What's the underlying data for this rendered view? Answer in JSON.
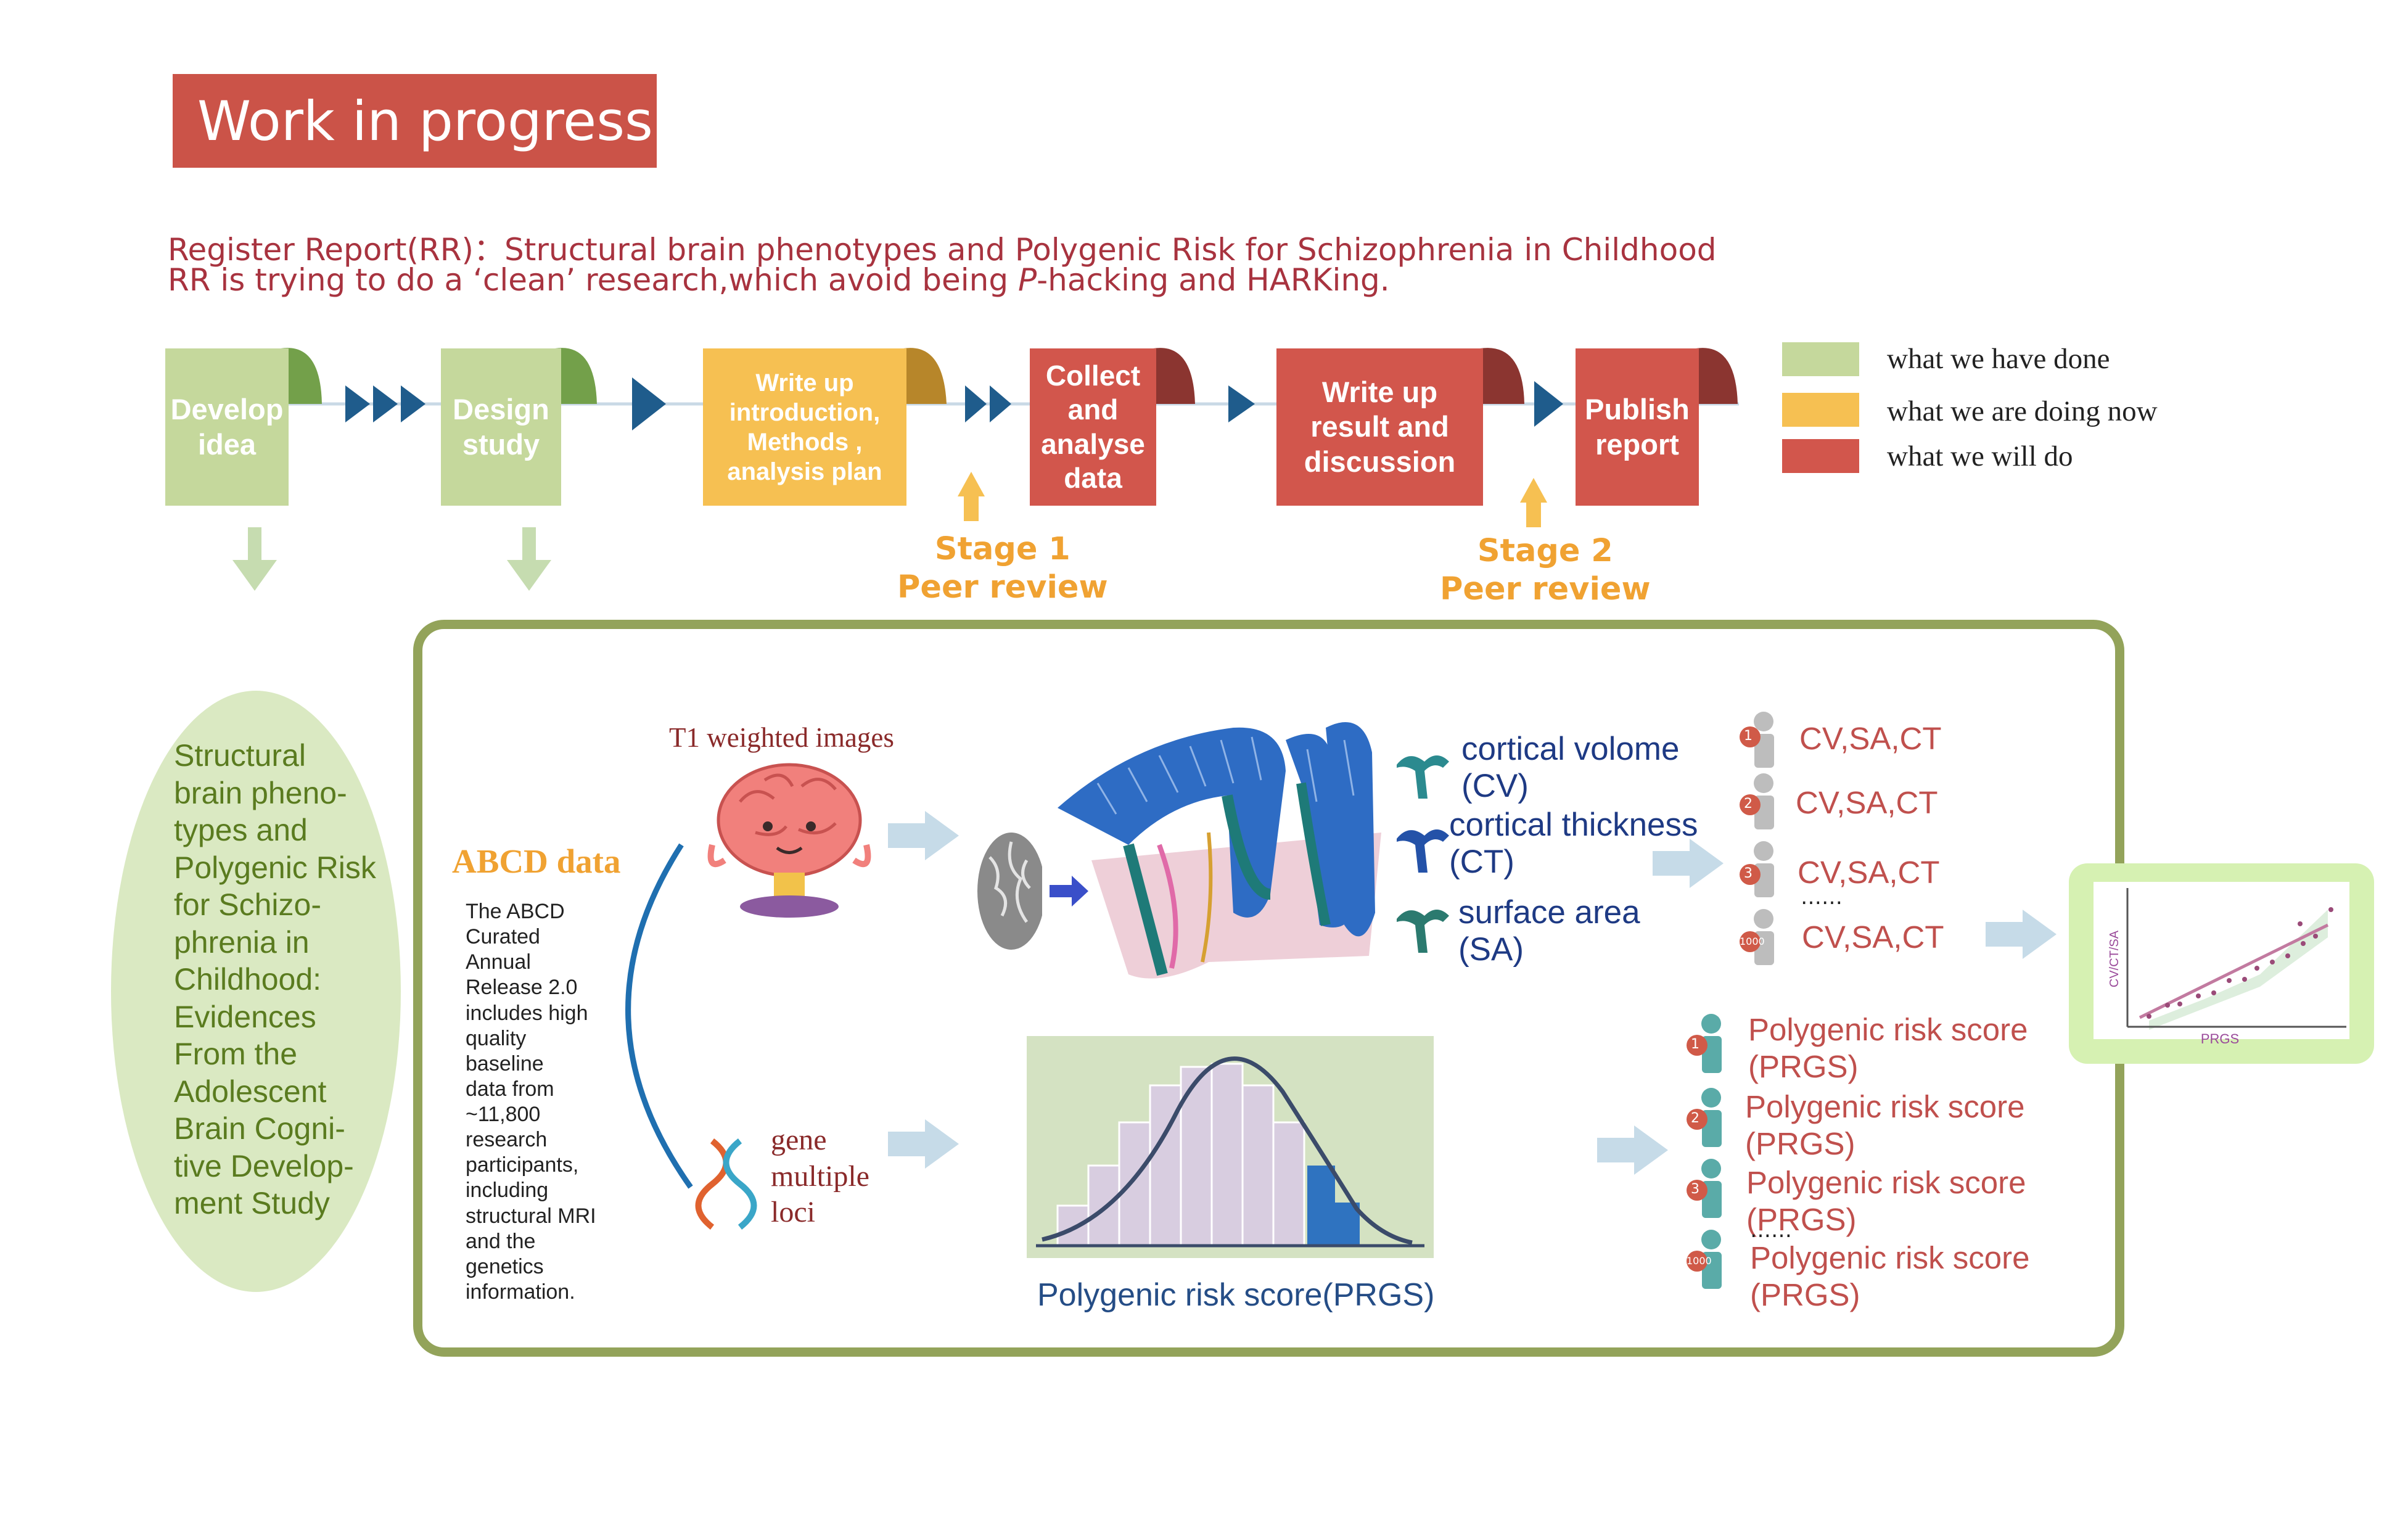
{
  "banner": {
    "title": "Work in progress"
  },
  "header": {
    "line1": "Register Report(RR)：Structural brain phenotypes and Polygenic Risk for Schizophrenia in Childhood",
    "line2_a": "RR is trying to do a ‘clean’ research,which avoid being ",
    "line2_p": "P",
    "line2_b": "-hacking and HARKing."
  },
  "workflow": {
    "steps": [
      {
        "label": "Develop idea",
        "status": "done"
      },
      {
        "label": "Design study",
        "status": "done"
      },
      {
        "label": "Write up introduction, Methods , analysis plan",
        "status": "doing"
      },
      {
        "label": "Collect and analyse data",
        "status": "will"
      },
      {
        "label": "Write up result and discussion",
        "status": "will"
      },
      {
        "label": "Publish report",
        "status": "will"
      }
    ],
    "stage1": "Stage 1\nPeer review",
    "stage2": "Stage 2\nPeer review"
  },
  "legend": [
    {
      "label": "what we have done",
      "color": "#c5d89c"
    },
    {
      "label": "what we are doing now",
      "color": "#f6c052"
    },
    {
      "label": "what we will do",
      "color": "#d2564c"
    }
  ],
  "colors": {
    "done": "#c5d89c",
    "doing": "#f6c052",
    "will": "#d2564c",
    "arrow": "#1f5c8c"
  },
  "study_title": "Structural\nbrain pheno-\ntypes and\nPolygenic Risk\nfor Schizo-\nphrenia in\nChildhood:\nEvidences\nFrom the\nAdolescent\nBrain Cogni-\ntive Develop-\nment Study",
  "abcd": {
    "title": "ABCD data",
    "body": "The ABCD\nCurated\nAnnual\nRelease 2.0\nincludes high\nquality\nbaseline\ndata from\n~11,800\nresearch\nparticipants,\nincluding\nstructural MRI\nand the\ngenetics\ninformation."
  },
  "imaging": {
    "t1_label": "T1 weighted images",
    "measures": [
      {
        "name": "cortical volome\n(CV)"
      },
      {
        "name": "cortical thickness\n(CT)"
      },
      {
        "name": "surface area\n(SA)"
      }
    ],
    "subjects": [
      {
        "id": "1",
        "label": "CV,SA,CT"
      },
      {
        "id": "2",
        "label": "CV,SA,CT"
      },
      {
        "id": "3",
        "label": "CV,SA,CT"
      },
      {
        "id": "1000",
        "label": "CV,SA,CT"
      }
    ],
    "ellipsis": "……"
  },
  "genetics": {
    "gene_label": "gene\nmultiple\nloci",
    "prgs_caption": "Polygenic risk score(PRGS)",
    "subjects": [
      {
        "id": "1",
        "label": "Polygenic risk score\n(PRGS)"
      },
      {
        "id": "2",
        "label": "Polygenic risk score\n(PRGS)"
      },
      {
        "id": "3",
        "label": "Polygenic risk score\n(PRGS)"
      },
      {
        "id": "1000",
        "label": "Polygenic risk score\n(PRGS)"
      }
    ],
    "ellipsis": "……"
  },
  "result_plot": {
    "xlabel": "PRGS",
    "ylabel": "CV/CT/SA"
  }
}
